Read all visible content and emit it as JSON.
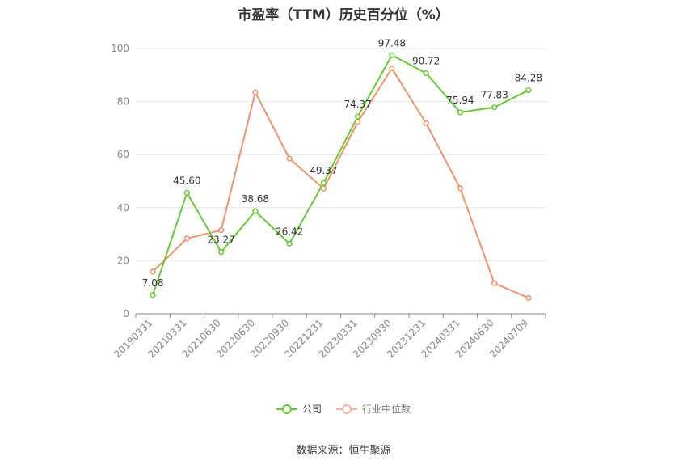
{
  "chart_data": {
    "type": "line",
    "title": "市盈率（TTM）历史百分位（%）",
    "categories": [
      "20190331",
      "20210331",
      "20210630",
      "20220630",
      "20220930",
      "20221231",
      "20230331",
      "20230930",
      "20231231",
      "20240331",
      "20240630",
      "20240709"
    ],
    "series": [
      {
        "name": "公司",
        "color": "#66cc33",
        "values": [
          7.08,
          45.6,
          23.27,
          38.68,
          26.42,
          49.37,
          74.37,
          97.48,
          90.72,
          75.94,
          77.83,
          84.28
        ],
        "labels": [
          "7.08",
          "45.60",
          "23.27",
          "38.68",
          "26.42",
          "49.37",
          "74.37",
          "97.48",
          "90.72",
          "75.94",
          "77.83",
          "84.28"
        ]
      },
      {
        "name": "行业中位数",
        "color": "#f2936a",
        "values": [
          15.9,
          28.4,
          31.5,
          83.5,
          58.5,
          47.2,
          72.3,
          92.5,
          71.8,
          47.3,
          11.5,
          6.0
        ]
      }
    ],
    "ylim": [
      0,
      100
    ],
    "yticks": [
      0,
      20,
      40,
      60,
      80,
      100
    ],
    "grid": true,
    "legend": "bottom"
  },
  "source": "数据来源：恒生聚源"
}
